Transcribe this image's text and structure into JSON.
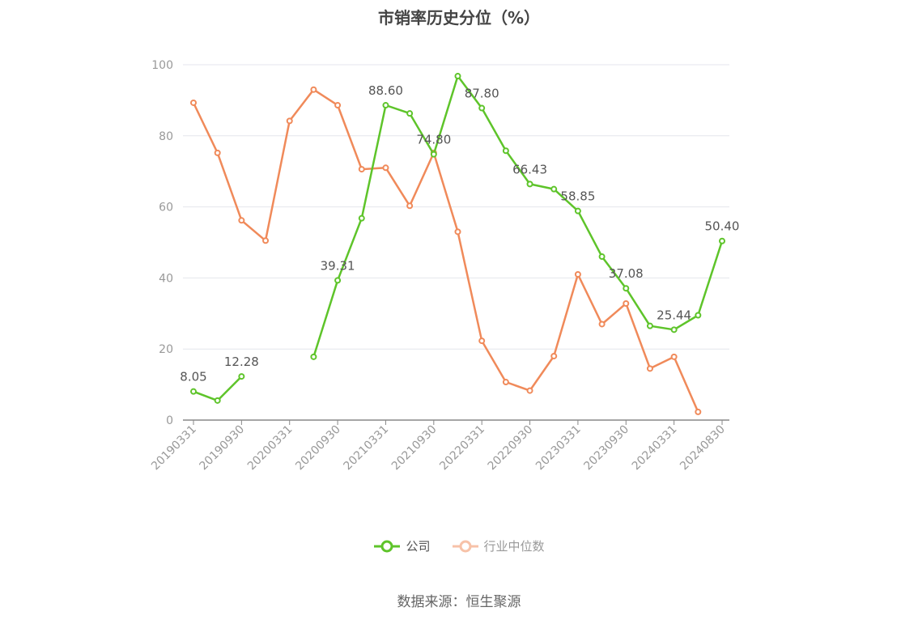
{
  "title": "市销率历史分位（%）",
  "source": "数据来源：恒生聚源",
  "colors": {
    "company": "#5ec42a",
    "industry": "#f08a5a",
    "axis": "#999999",
    "grid": "#e4e6ec"
  },
  "legend": [
    {
      "label": "公司",
      "icon": "circle-line-icon"
    },
    {
      "label": "行业中位数",
      "icon": "circle-line-icon"
    }
  ],
  "chart_data": {
    "type": "line",
    "ylim": [
      0,
      100
    ],
    "yticks": [
      0,
      20,
      40,
      60,
      80,
      100
    ],
    "x": [
      "20190331",
      "20190630",
      "20190930",
      "20191231",
      "20200331",
      "20200630",
      "20200930",
      "20201231",
      "20210331",
      "20210630",
      "20210930",
      "20211231",
      "20220331",
      "20220630",
      "20220930",
      "20221231",
      "20230331",
      "20230630",
      "20230930",
      "20231231",
      "20240331",
      "20240630",
      "20240830"
    ],
    "xtick_labels": [
      "20190331",
      "20190930",
      "20200331",
      "20200930",
      "20210331",
      "20210930",
      "20220331",
      "20220930",
      "20230331",
      "20230930",
      "20240331",
      "20240830"
    ],
    "grid": true,
    "legend_position": "bottom",
    "series": [
      {
        "name": "公司",
        "values": [
          8.05,
          5.5,
          12.28,
          null,
          null,
          17.8,
          39.31,
          56.8,
          88.6,
          86.3,
          74.8,
          96.8,
          87.8,
          75.8,
          66.43,
          65.0,
          58.85,
          46.0,
          37.08,
          26.5,
          25.44,
          29.5,
          50.4
        ],
        "labels": [
          "8.05",
          null,
          "12.28",
          null,
          null,
          null,
          "39.31",
          null,
          "88.60",
          null,
          "74.80",
          null,
          "87.80",
          null,
          "66.43",
          null,
          "58.85",
          null,
          "37.08",
          null,
          "25.44",
          null,
          "50.40"
        ]
      },
      {
        "name": "行业中位数",
        "values": [
          89.3,
          75.2,
          56.2,
          50.5,
          84.2,
          93.0,
          88.6,
          70.6,
          71.0,
          60.3,
          75.2,
          53.0,
          22.3,
          10.7,
          8.3,
          18.0,
          41.0,
          27.0,
          32.8,
          14.5,
          17.8,
          2.3,
          null
        ]
      }
    ]
  }
}
